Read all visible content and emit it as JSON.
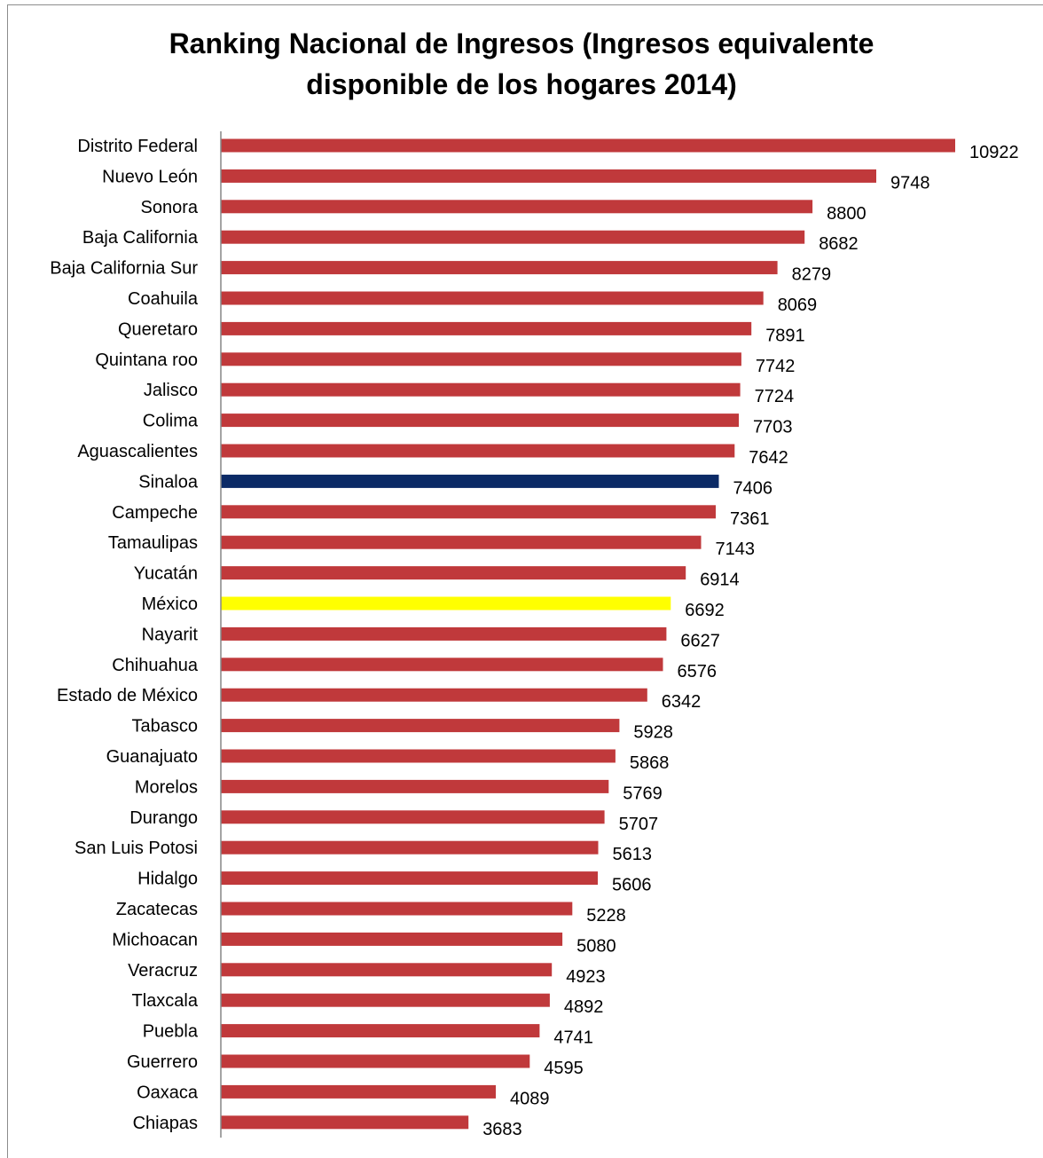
{
  "chart_data": {
    "type": "bar",
    "orientation": "horizontal",
    "title": "Ranking Nacional de Ingresos (Ingresos equivalente disponible de los hogares 2014)",
    "title_lines": [
      "Ranking Nacional de Ingresos (Ingresos equivalente",
      "disponible de los hogares 2014)"
    ],
    "xlabel": "",
    "ylabel": "",
    "xlim": [
      0,
      11000
    ],
    "grid": false,
    "legend": "none",
    "colors": {
      "default_bar": "#c0393b",
      "highlight_sinaloa": "#0b2a66",
      "highlight_mexico": "#ffff00"
    },
    "categories": [
      "Distrito Federal",
      "Nuevo León",
      "Sonora",
      "Baja California",
      "Baja California Sur",
      "Coahuila",
      "Queretaro",
      "Quintana roo",
      "Jalisco",
      "Colima",
      "Aguascalientes",
      "Sinaloa",
      "Campeche",
      "Tamaulipas",
      "Yucatán",
      "México",
      "Nayarit",
      "Chihuahua",
      "Estado de México",
      "Tabasco",
      "Guanajuato",
      "Morelos",
      "Durango",
      "San Luis Potosi",
      "Hidalgo",
      "Zacatecas",
      "Michoacan",
      "Veracruz",
      "Tlaxcala",
      "Puebla",
      "Guerrero",
      "Oaxaca",
      "Chiapas"
    ],
    "values": [
      10922,
      9748,
      8800,
      8682,
      8279,
      8069,
      7891,
      7742,
      7724,
      7703,
      7642,
      7406,
      7361,
      7143,
      6914,
      6692,
      6627,
      6576,
      6342,
      5928,
      5868,
      5769,
      5707,
      5613,
      5606,
      5228,
      5080,
      4923,
      4892,
      4741,
      4595,
      4089,
      3683
    ],
    "bar_colors": [
      "#c0393b",
      "#c0393b",
      "#c0393b",
      "#c0393b",
      "#c0393b",
      "#c0393b",
      "#c0393b",
      "#c0393b",
      "#c0393b",
      "#c0393b",
      "#c0393b",
      "#0b2a66",
      "#c0393b",
      "#c0393b",
      "#c0393b",
      "#ffff00",
      "#c0393b",
      "#c0393b",
      "#c0393b",
      "#c0393b",
      "#c0393b",
      "#c0393b",
      "#c0393b",
      "#c0393b",
      "#c0393b",
      "#c0393b",
      "#c0393b",
      "#c0393b",
      "#c0393b",
      "#c0393b",
      "#c0393b",
      "#c0393b",
      "#c0393b"
    ]
  }
}
